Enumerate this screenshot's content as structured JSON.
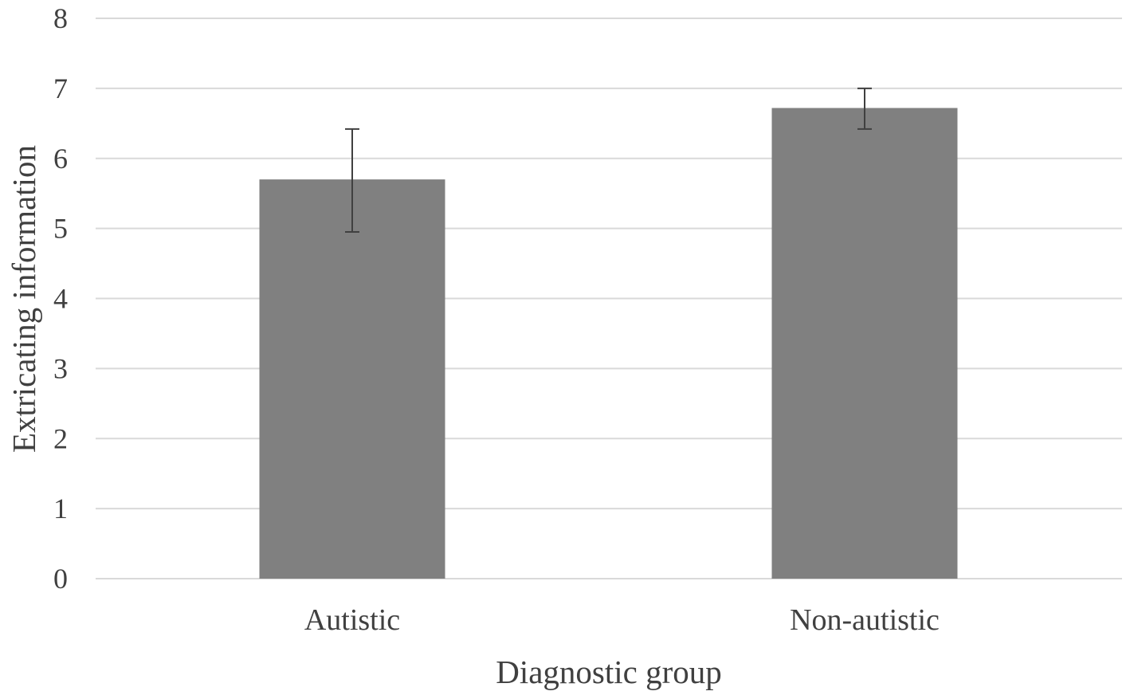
{
  "chart_data": {
    "type": "bar",
    "categories": [
      "Autistic",
      "Non-autistic"
    ],
    "values": [
      5.7,
      6.72
    ],
    "error_upper": [
      6.42,
      7.0
    ],
    "error_lower": [
      4.95,
      6.42
    ],
    "ylim": [
      0,
      8
    ],
    "yticks": [
      "0",
      "1",
      "2",
      "3",
      "4",
      "5",
      "6",
      "7",
      "8"
    ],
    "xlabel": "Diagnostic group",
    "ylabel": "Extricating information",
    "grid": true,
    "legend": "none",
    "bar_color": "#808080"
  }
}
